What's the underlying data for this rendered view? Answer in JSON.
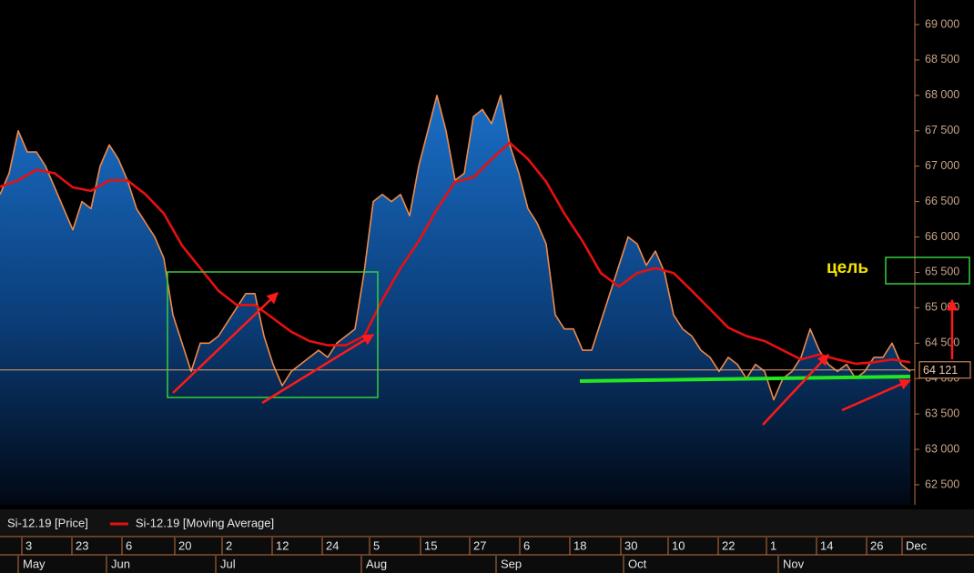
{
  "chart_data": {
    "type": "line",
    "series": [
      {
        "name": "Si-12.19 [Price]",
        "color": "#f08a4a",
        "area": true,
        "x": [
          0,
          1,
          2,
          3,
          4,
          5,
          6,
          7,
          8,
          9,
          10,
          11,
          12,
          13,
          14,
          15,
          16,
          17,
          18,
          19,
          20,
          21,
          22,
          23,
          24,
          25,
          26,
          27,
          28,
          29,
          30,
          31,
          32,
          33,
          34,
          35,
          36,
          37,
          38,
          39,
          40,
          41,
          42,
          43,
          44,
          45,
          46,
          47,
          48,
          49,
          50,
          51,
          52,
          53,
          54,
          55,
          56,
          57,
          58,
          59,
          60,
          61,
          62,
          63,
          64,
          65,
          66,
          67,
          68,
          69,
          70,
          71,
          72,
          73,
          74,
          75,
          76,
          77,
          78,
          79,
          80,
          81,
          82,
          83,
          84,
          85,
          86,
          87,
          88,
          89,
          90,
          91,
          92,
          93,
          94,
          95,
          96,
          97,
          98,
          99,
          100
        ],
        "values": [
          66600,
          66900,
          67500,
          67200,
          67200,
          67000,
          66700,
          66400,
          66100,
          66500,
          66400,
          67000,
          67300,
          67100,
          66800,
          66400,
          66200,
          66000,
          65700,
          64900,
          64500,
          64100,
          64500,
          64500,
          64600,
          64800,
          65000,
          65200,
          65200,
          64600,
          64200,
          63900,
          64100,
          64200,
          64300,
          64400,
          64300,
          64500,
          64600,
          64700,
          65500,
          66500,
          66600,
          66500,
          66600,
          66300,
          67000,
          67500,
          68000,
          67500,
          66800,
          66900,
          67700,
          67800,
          67600,
          68000,
          67300,
          66900,
          66400,
          66200,
          65900,
          64900,
          64700,
          64700,
          64400,
          64400,
          64800,
          65200,
          65600,
          66000,
          65900,
          65600,
          65800,
          65500,
          64900,
          64700,
          64600,
          64400,
          64300,
          64100,
          64300,
          64200,
          64000,
          64200,
          64100,
          63700,
          64000,
          64100,
          64300,
          64700,
          64400,
          64200,
          64100,
          64200,
          64000,
          64100,
          64300,
          64300,
          64500,
          64200,
          64100
        ]
      },
      {
        "name": "Si-12.19 [Moving Average]",
        "color": "#e81010",
        "area": false,
        "x": [
          0,
          2,
          4,
          6,
          8,
          10,
          12,
          14,
          16,
          18,
          20,
          22,
          24,
          26,
          28,
          30,
          32,
          34,
          36,
          38,
          40,
          42,
          44,
          46,
          48,
          50,
          52,
          54,
          56,
          58,
          60,
          62,
          64,
          66,
          68,
          70,
          72,
          74,
          76,
          78,
          80,
          82,
          84,
          86,
          88,
          90,
          92,
          94,
          96,
          98,
          100
        ],
        "values": [
          66710,
          66800,
          66950,
          66900,
          66700,
          66650,
          66800,
          66800,
          66600,
          66330,
          65880,
          65560,
          65240,
          65040,
          65040,
          64850,
          64660,
          64530,
          64470,
          64470,
          64600,
          65110,
          65560,
          65940,
          66390,
          66780,
          66840,
          67100,
          67330,
          67100,
          66780,
          66330,
          65940,
          65490,
          65300,
          65490,
          65560,
          65490,
          65240,
          64980,
          64720,
          64600,
          64530,
          64400,
          64270,
          64340,
          64270,
          64210,
          64230,
          64270,
          64230
        ]
      }
    ],
    "xlim": [
      0,
      100.5
    ],
    "xticks": [
      {
        "value": 3,
        "label": "3"
      },
      {
        "value": 8.5,
        "label": "23"
      },
      {
        "value": 14,
        "label": "6"
      },
      {
        "value": 19.8,
        "label": "20"
      },
      {
        "value": 25,
        "label": "2"
      },
      {
        "value": 30.5,
        "label": "12"
      },
      {
        "value": 36,
        "label": "24"
      },
      {
        "value": 41.2,
        "label": "5"
      },
      {
        "value": 46.8,
        "label": "15"
      },
      {
        "value": 52.2,
        "label": "27"
      },
      {
        "value": 57.7,
        "label": "6"
      },
      {
        "value": 63.2,
        "label": "18"
      },
      {
        "value": 68.8,
        "label": "30"
      },
      {
        "value": 74,
        "label": "10"
      },
      {
        "value": 79.5,
        "label": "22"
      },
      {
        "value": 84.8,
        "label": "1"
      },
      {
        "value": 90.3,
        "label": "14"
      },
      {
        "value": 95.8,
        "label": "26"
      },
      {
        "value": 99.7,
        "label": "Dec"
      }
    ],
    "month_ticks": [
      {
        "value": 2.5,
        "label": "May"
      },
      {
        "value": 12.2,
        "label": "Jun"
      },
      {
        "value": 24.2,
        "label": "Jul"
      },
      {
        "value": 40.2,
        "label": "Aug"
      },
      {
        "value": 55,
        "label": "Sep"
      },
      {
        "value": 69,
        "label": "Oct"
      },
      {
        "value": 86,
        "label": "Nov"
      }
    ],
    "ylim": [
      62217,
      69347
    ],
    "yticks": [
      {
        "value": 62500,
        "label": "62 500"
      },
      {
        "value": 63000,
        "label": "63 000"
      },
      {
        "value": 63500,
        "label": "63 500"
      },
      {
        "value": 64000,
        "label": "64 000"
      },
      {
        "value": 64500,
        "label": "64 500"
      },
      {
        "value": 65000,
        "label": "65 000"
      },
      {
        "value": 65500,
        "label": "65 500"
      },
      {
        "value": 66000,
        "label": "66 000"
      },
      {
        "value": 66500,
        "label": "66 500"
      },
      {
        "value": 67000,
        "label": "67 000"
      },
      {
        "value": 67500,
        "label": "67 500"
      },
      {
        "value": 68000,
        "label": "68 000"
      },
      {
        "value": 68500,
        "label": "68 500"
      },
      {
        "value": 69000,
        "label": "69 000"
      }
    ],
    "last_price": {
      "value": 64121,
      "label": "64 121"
    },
    "annotation": "цель"
  }
}
